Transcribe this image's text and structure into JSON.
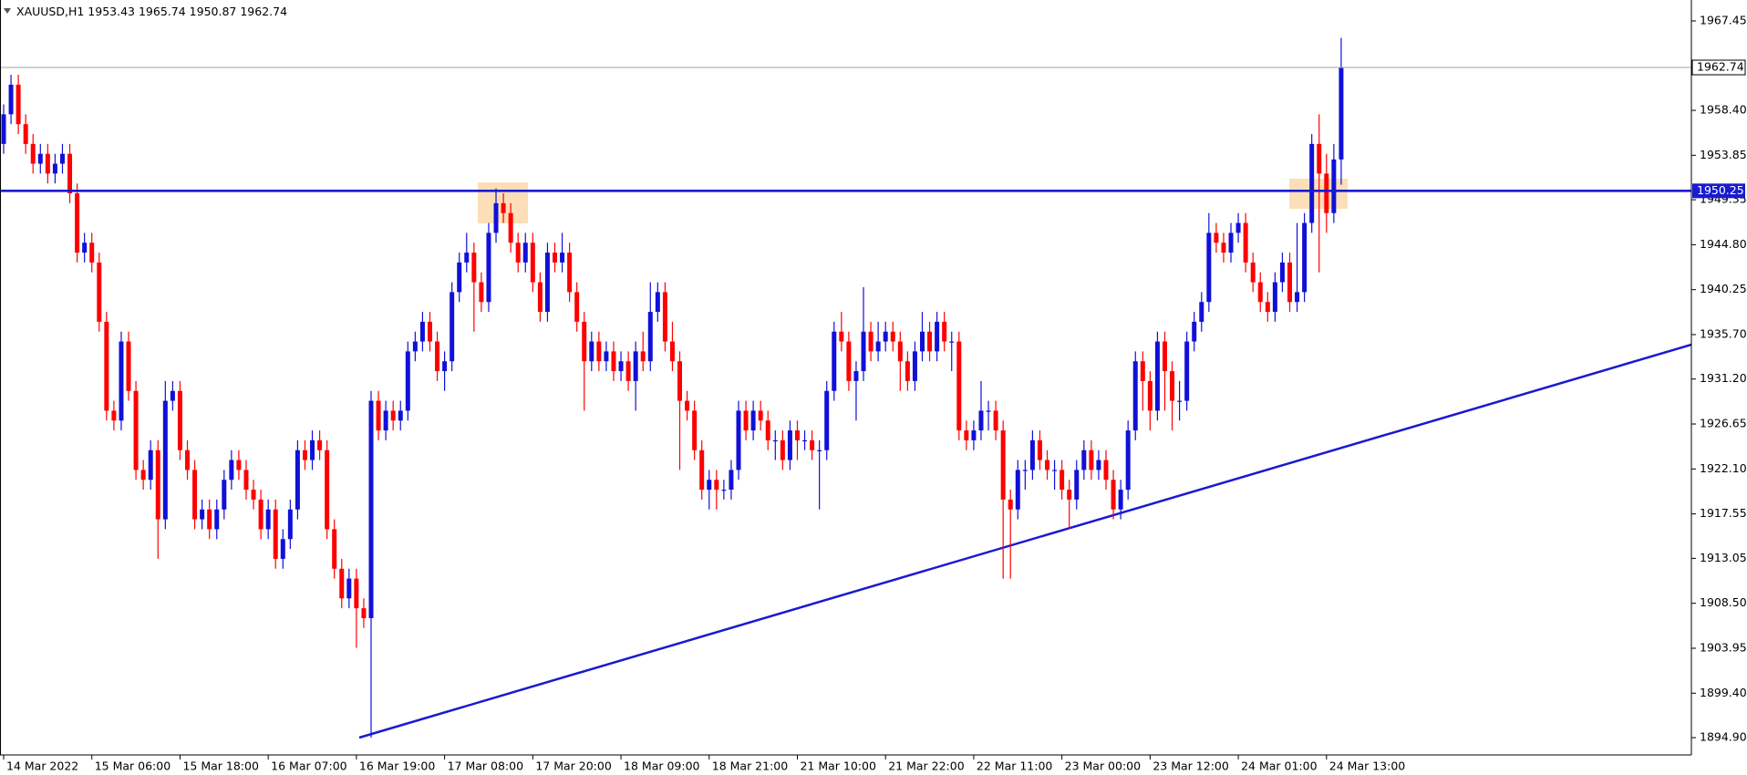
{
  "chart_data": {
    "type": "candlestick",
    "symbol": "XAUUSD,H1",
    "up_color": "#1010d8",
    "down_color": "#ff0000",
    "hline": 1950.25,
    "hline_color": "#1a1ad0",
    "ylim": [
      1893.15,
      1969.57
    ],
    "yticks": [
      1967.45,
      {
        "value": 1958.4,
        "label": "1958.40"
      },
      1953.85,
      1949.35,
      {
        "value": 1944.8,
        "label": "1944.80"
      },
      1940.25,
      {
        "value": 1935.7,
        "label": "1935.70"
      },
      {
        "value": 1931.2,
        "label": "1931.20"
      },
      1926.65,
      {
        "value": 1922.1,
        "label": "1922.10"
      },
      1917.55,
      1913.05,
      {
        "value": 1908.5,
        "label": "1908.50"
      },
      1903.95,
      {
        "value": 1899.4,
        "label": "1899.40"
      },
      {
        "value": 1894.9,
        "label": "1894.90"
      }
    ],
    "xtick_labels": [
      "14 Mar 2022",
      "15 Mar 06:00",
      "15 Mar 18:00",
      "16 Mar 07:00",
      "16 Mar 19:00",
      "17 Mar 08:00",
      "17 Mar 20:00",
      "18 Mar 09:00",
      "18 Mar 21:00",
      "21 Mar 10:00",
      "21 Mar 22:00",
      "22 Mar 11:00",
      "23 Mar 00:00",
      "23 Mar 12:00",
      "24 Mar 01:00",
      "24 Mar 13:00"
    ],
    "open": [
      1955,
      1958,
      1961,
      1957,
      1955,
      1953,
      1954,
      1952,
      1953,
      1954,
      1950,
      1944,
      1945,
      1943,
      1937,
      1928,
      1927,
      1935,
      1930,
      1922,
      1921,
      1924,
      1917,
      1929,
      1930,
      1924,
      1922,
      1917,
      1918,
      1916,
      1918,
      1921,
      1923,
      1922,
      1920,
      1919,
      1916,
      1918,
      1913,
      1915,
      1918,
      1924,
      1923,
      1925,
      1924,
      1916,
      1912,
      1909,
      1911,
      1908,
      1907,
      1929,
      1926,
      1928,
      1927,
      1928,
      1934,
      1935,
      1937,
      1935,
      1932,
      1933,
      1940,
      1943,
      1944,
      1941,
      1939,
      1946,
      1949,
      1948,
      1945,
      1943,
      1945,
      1941,
      1938,
      1944,
      1943,
      1944,
      1940,
      1937,
      1933,
      1935,
      1933,
      1934,
      1932,
      1933,
      1931,
      1934,
      1933,
      1938,
      1940,
      1935,
      1933,
      1929,
      1928,
      1924,
      1920,
      1921,
      1920,
      1920,
      1922,
      1928,
      1926,
      1928,
      1927,
      1925,
      1925,
      1923,
      1926,
      1925,
      1925,
      1924,
      1924,
      1930,
      1936,
      1935,
      1931,
      1932,
      1936,
      1934,
      1935,
      1936,
      1935,
      1933,
      1931,
      1934,
      1936,
      1934,
      1937,
      1935,
      1935,
      1926,
      1925,
      1926,
      1928,
      1928,
      1926,
      1919,
      1918,
      1922,
      1922,
      1925,
      1923,
      1922,
      1922,
      1920,
      1919,
      1922,
      1924,
      1922,
      1923,
      1921,
      1918,
      1920,
      1926,
      1933,
      1931,
      1928,
      1935,
      1932,
      1929,
      1929,
      1935,
      1937,
      1939,
      1946,
      1945,
      1944,
      1946,
      1947,
      1943,
      1941,
      1939,
      1938,
      1941,
      1943,
      1939,
      1940,
      1947,
      1955,
      1952,
      1948,
      1953.43
    ],
    "high": [
      1959,
      1962,
      1962,
      1958,
      1956,
      1955,
      1955,
      1954,
      1955,
      1955,
      1951,
      1946,
      1946,
      1944,
      1938,
      1929,
      1936,
      1936,
      1931,
      1923,
      1925,
      1925,
      1931,
      1931,
      1931,
      1925,
      1923,
      1919,
      1919,
      1919,
      1922,
      1924,
      1924,
      1923,
      1921,
      1920,
      1919,
      1919,
      1916,
      1919,
      1925,
      1925,
      1926,
      1926,
      1925,
      1917,
      1913,
      1912,
      1912,
      1909,
      1930,
      1930,
      1929,
      1929,
      1929,
      1935,
      1936,
      1938,
      1938,
      1936,
      1934,
      1941,
      1944,
      1946,
      1945,
      1942,
      1947,
      1950.5,
      1950,
      1949,
      1946,
      1946,
      1946,
      1942,
      1945,
      1945,
      1946,
      1945,
      1941,
      1938,
      1936,
      1936,
      1935,
      1935,
      1934,
      1934,
      1935,
      1936,
      1941,
      1941,
      1941,
      1937,
      1934,
      1930,
      1929,
      1925,
      1922,
      1922,
      1921,
      1923,
      1929,
      1929,
      1929,
      1929,
      1928,
      1926,
      1926,
      1927,
      1927,
      1926,
      1926,
      1925,
      1931,
      1937,
      1938,
      1936,
      1933,
      1940.5,
      1937,
      1937,
      1937,
      1937,
      1936,
      1934,
      1935,
      1938,
      1937,
      1938,
      1938,
      1936,
      1936,
      1927,
      1927,
      1931,
      1929,
      1929,
      1927,
      1920,
      1923,
      1923,
      1926,
      1926,
      1924,
      1923,
      1923,
      1921,
      1923,
      1925,
      1925,
      1924,
      1924,
      1922,
      1921,
      1927,
      1934,
      1934,
      1932,
      1936,
      1936,
      1933,
      1931,
      1936,
      1938,
      1940,
      1948,
      1947,
      1946,
      1947,
      1948,
      1948,
      1944,
      1942,
      1940,
      1942,
      1944,
      1944,
      1947,
      1948,
      1956,
      1958,
      1954,
      1955,
      1965.74
    ],
    "low": [
      1954,
      1957,
      1956,
      1954,
      1952,
      1952,
      1951,
      1951,
      1952,
      1949,
      1943,
      1943,
      1942,
      1936,
      1927,
      1926,
      1926,
      1929,
      1921,
      1920,
      1920,
      1913,
      1916,
      1928,
      1923,
      1921,
      1916,
      1916,
      1915,
      1915,
      1917,
      1920,
      1921,
      1919,
      1918,
      1915,
      1915,
      1912,
      1912,
      1914,
      1917,
      1922,
      1922,
      1923,
      1915,
      1911,
      1908,
      1908,
      1904,
      1906,
      1894.9,
      1925,
      1925,
      1926,
      1926,
      1927,
      1933,
      1934,
      1934,
      1931,
      1930,
      1932,
      1939,
      1942,
      1936,
      1938,
      1938,
      1945,
      1947,
      1944,
      1942,
      1942,
      1940,
      1937,
      1937,
      1942,
      1942,
      1939,
      1936,
      1928,
      1932,
      1932,
      1932,
      1931,
      1931,
      1930,
      1928,
      1932,
      1932,
      1937,
      1934,
      1932,
      1922,
      1927,
      1923,
      1919,
      1918,
      1918,
      1919,
      1919,
      1921,
      1925,
      1925,
      1926,
      1924,
      1923,
      1922,
      1922,
      1923,
      1924,
      1923,
      1918,
      1923,
      1929,
      1934,
      1930,
      1927,
      1931,
      1933,
      1933,
      1934,
      1934,
      1930,
      1930,
      1930,
      1933,
      1933,
      1933,
      1934,
      1932,
      1925,
      1924,
      1924,
      1925,
      1926,
      1925,
      1911,
      1911,
      1917,
      1920,
      1921,
      1922,
      1921,
      1920,
      1919,
      1916,
      1918,
      1921,
      1921,
      1921,
      1920,
      1917,
      1917,
      1919,
      1925,
      1928,
      1926,
      1927,
      1928,
      1926,
      1927,
      1928,
      1934,
      1936,
      1938,
      1944,
      1943,
      1943,
      1945,
      1942,
      1940,
      1938,
      1937,
      1937,
      1940,
      1938,
      1938,
      1939,
      1946,
      1942,
      1946,
      1947,
      1950.87
    ],
    "close": [
      1958,
      1961,
      1957,
      1955,
      1953,
      1954,
      1952,
      1953,
      1954,
      1950,
      1944,
      1945,
      1943,
      1937,
      1928,
      1927,
      1935,
      1930,
      1922,
      1921,
      1924,
      1917,
      1929,
      1930,
      1924,
      1922,
      1917,
      1918,
      1916,
      1918,
      1921,
      1923,
      1922,
      1920,
      1919,
      1916,
      1918,
      1913,
      1915,
      1918,
      1924,
      1923,
      1925,
      1924,
      1916,
      1912,
      1909,
      1911,
      1908,
      1907,
      1929,
      1926,
      1928,
      1927,
      1928,
      1934,
      1935,
      1937,
      1935,
      1932,
      1933,
      1940,
      1943,
      1944,
      1941,
      1939,
      1946,
      1949,
      1948,
      1945,
      1943,
      1945,
      1941,
      1938,
      1944,
      1943,
      1944,
      1940,
      1937,
      1933,
      1935,
      1933,
      1934,
      1932,
      1933,
      1931,
      1934,
      1933,
      1938,
      1940,
      1935,
      1933,
      1929,
      1928,
      1924,
      1920,
      1921,
      1920,
      1920,
      1922,
      1928,
      1926,
      1928,
      1927,
      1925,
      1925,
      1923,
      1926,
      1925,
      1925,
      1924,
      1924,
      1930,
      1936,
      1935,
      1931,
      1932,
      1936,
      1934,
      1935,
      1936,
      1935,
      1933,
      1931,
      1934,
      1936,
      1934,
      1937,
      1935,
      1935,
      1926,
      1925,
      1926,
      1928,
      1928,
      1926,
      1919,
      1918,
      1922,
      1922,
      1925,
      1923,
      1922,
      1922,
      1920,
      1919,
      1922,
      1924,
      1922,
      1923,
      1921,
      1918,
      1920,
      1926,
      1933,
      1931,
      1928,
      1935,
      1932,
      1929,
      1929,
      1935,
      1937,
      1939,
      1946,
      1945,
      1944,
      1946,
      1947,
      1943,
      1941,
      1939,
      1938,
      1941,
      1943,
      1939,
      1940,
      1947,
      1955,
      1952,
      1948,
      1953.43,
      1962.74
    ]
  }
}
